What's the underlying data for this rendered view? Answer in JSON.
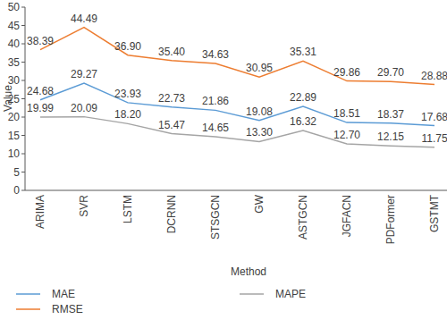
{
  "chart_data": {
    "type": "line",
    "x_label": "Method",
    "y_label": "Value",
    "categories": [
      "ARIMA",
      "SVR",
      "LSTM",
      "DCRNN",
      "STSGCN",
      "GW",
      "ASTGCN",
      "JGFACN",
      "PDFormer",
      "GSTMT"
    ],
    "series": [
      {
        "name": "MAE",
        "color": "#5b9bd5",
        "values": [
          24.68,
          29.27,
          23.93,
          22.73,
          21.86,
          19.08,
          22.89,
          18.51,
          18.37,
          17.68
        ],
        "value_labels": [
          "24.68",
          "29.27",
          "23.93",
          "22.73",
          "21.86",
          "19.08",
          "22.89",
          "18.51",
          "18.37",
          "17.68"
        ]
      },
      {
        "name": "RMSE",
        "color": "#ed7d31",
        "values": [
          38.39,
          44.49,
          36.9,
          35.4,
          34.63,
          30.95,
          35.31,
          29.86,
          29.7,
          28.88
        ],
        "value_labels": [
          "38.39",
          "44.49",
          "36.90",
          "35.40",
          "34.63",
          "30.95",
          "35.31",
          "29.86",
          "29.70",
          "28.88"
        ]
      },
      {
        "name": "MAPE",
        "color": "#a5a5a5",
        "values": [
          19.99,
          20.09,
          18.2,
          15.47,
          14.65,
          13.3,
          16.32,
          12.7,
          12.15,
          11.75
        ],
        "value_labels": [
          "19.99",
          "20.09",
          "18.20",
          "15.47",
          "14.65",
          "13.30",
          "16.32",
          "12.70",
          "12.15",
          "11.75"
        ]
      }
    ],
    "ylim": [
      0,
      50
    ],
    "yticks": [
      0,
      5,
      10,
      15,
      20,
      25,
      30,
      35,
      40,
      45,
      50
    ],
    "grid": false,
    "legend": "bottom",
    "data_labels": true
  }
}
